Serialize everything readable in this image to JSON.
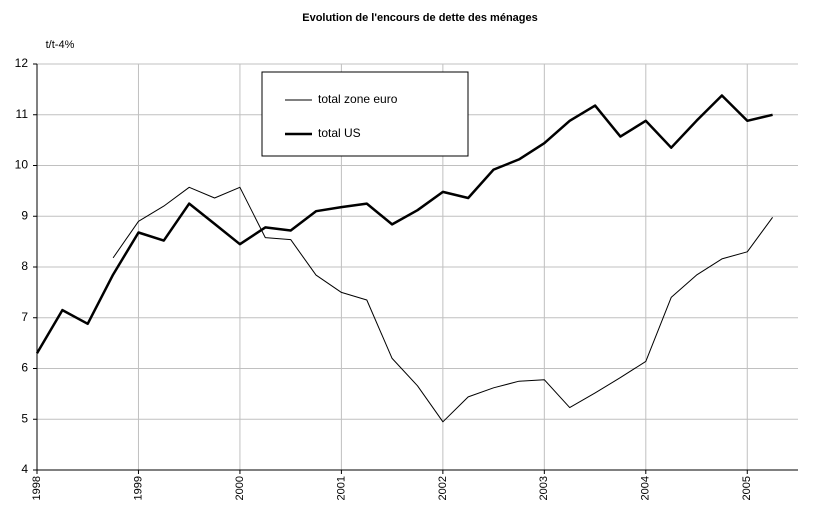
{
  "chart_data": {
    "type": "line",
    "title": "Evolution de l'encours de dette des ménages",
    "y_label": "t/t-4%",
    "x": [
      1998,
      1998.25,
      1998.5,
      1998.75,
      1999,
      1999.25,
      1999.5,
      1999.75,
      2000,
      2000.25,
      2000.5,
      2000.75,
      2001,
      2001.25,
      2001.5,
      2001.75,
      2002,
      2002.25,
      2002.5,
      2002.75,
      2003,
      2003.25,
      2003.5,
      2003.75,
      2004,
      2004.25,
      2004.5,
      2004.75,
      2005,
      2005.25
    ],
    "series": [
      {
        "name": "total zone euro",
        "color": "#000000",
        "width": 1,
        "values": [
          null,
          null,
          null,
          8.18,
          8.9,
          9.2,
          9.57,
          9.36,
          9.57,
          8.58,
          8.54,
          7.84,
          7.5,
          7.35,
          6.2,
          5.66,
          4.95,
          5.44,
          5.62,
          5.75,
          5.78,
          5.23,
          5.52,
          5.82,
          6.14,
          7.4,
          7.84,
          8.16,
          8.3,
          8.98
        ]
      },
      {
        "name": "total US",
        "color": "#000000",
        "width": 2.5,
        "values": [
          6.3,
          7.15,
          6.88,
          7.85,
          8.68,
          8.52,
          9.25,
          8.85,
          8.45,
          8.78,
          8.72,
          9.1,
          9.18,
          9.25,
          8.84,
          9.12,
          9.48,
          9.36,
          9.92,
          10.12,
          10.44,
          10.88,
          11.18,
          10.57,
          10.88,
          10.35,
          10.88,
          11.38,
          10.88,
          11.0
        ]
      }
    ],
    "xlim": [
      1998,
      2005.5
    ],
    "xticks": [
      1998,
      1999,
      2000,
      2001,
      2002,
      2003,
      2004,
      2005
    ],
    "ylim": [
      4,
      12
    ],
    "yticks": [
      4,
      5,
      6,
      7,
      8,
      9,
      10,
      11,
      12
    ],
    "grid": true
  }
}
